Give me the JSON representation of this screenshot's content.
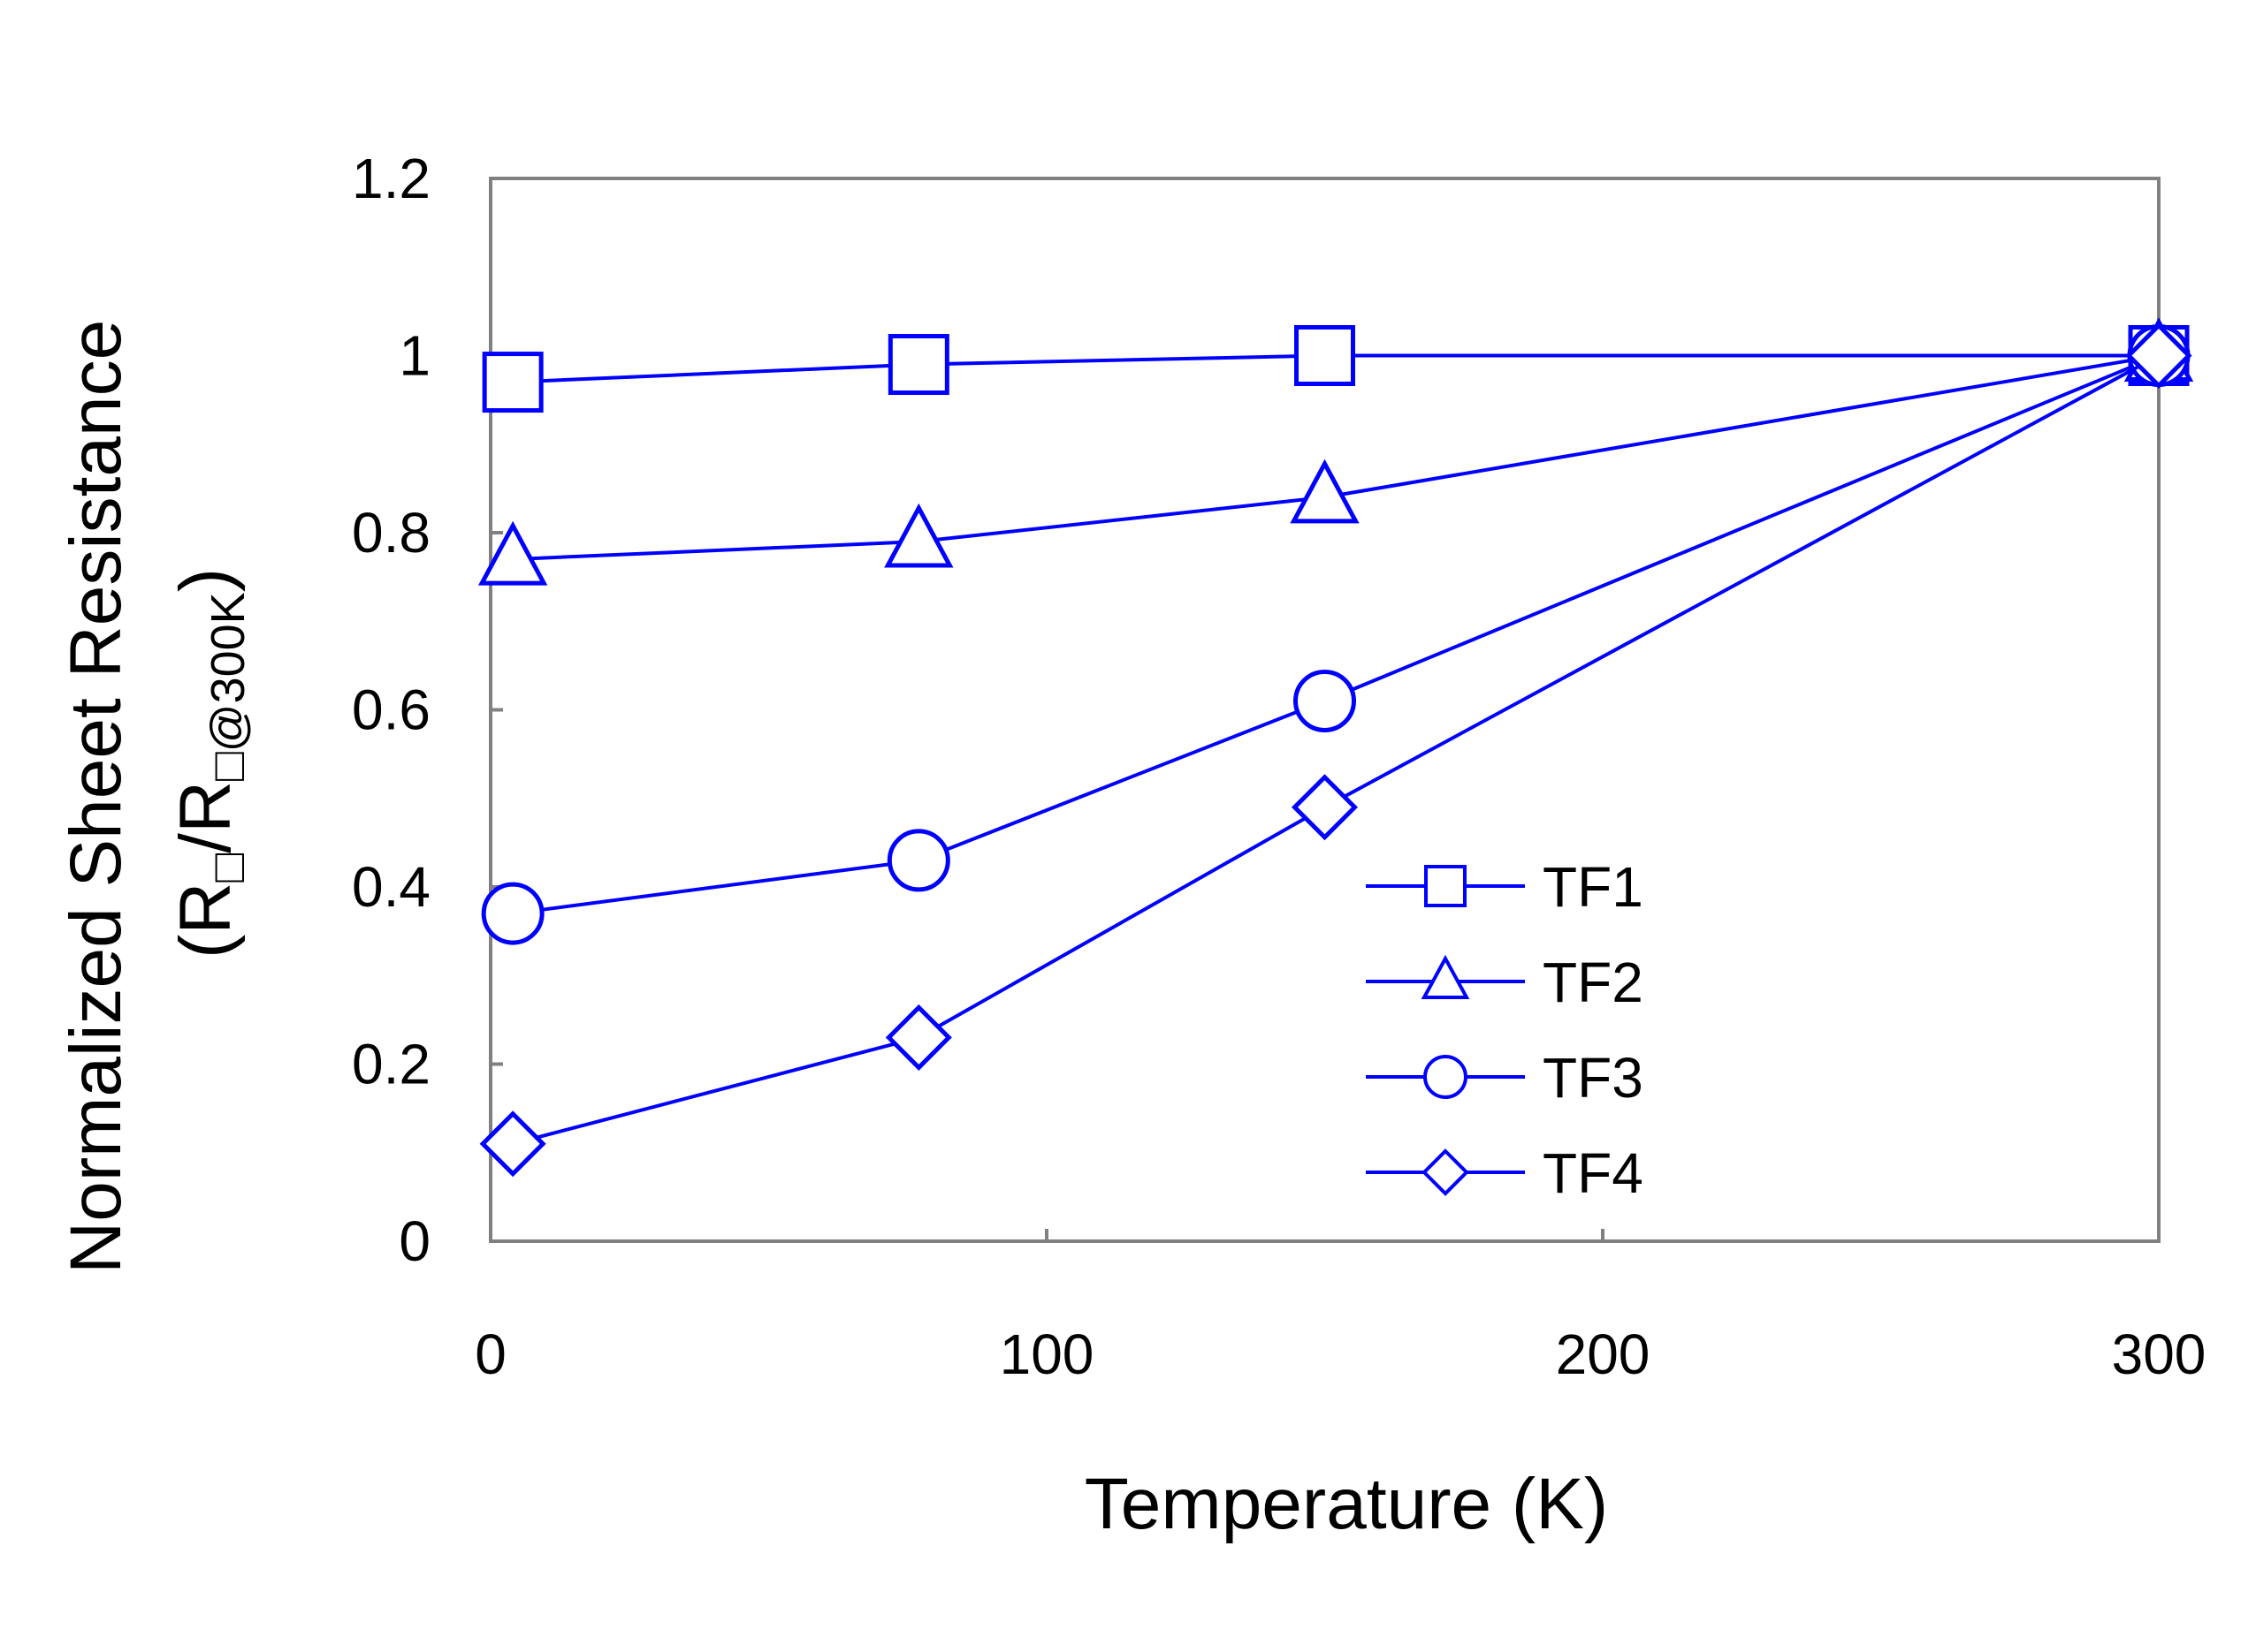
{
  "chart_data": {
    "type": "line",
    "title": "",
    "xlabel": "Temperature (K)",
    "ylabel": "Normalized Sheet Resistance",
    "ylabel_line2": {
      "open": "(R",
      "sub1": "□",
      "slash": "/R",
      "sub2": "□@300K",
      "close": ")"
    },
    "xlim": [
      0,
      300
    ],
    "ylim": [
      0,
      1.2
    ],
    "x_ticks": [
      {
        "value": 0,
        "label": "0"
      },
      {
        "value": 100,
        "label": "100"
      },
      {
        "value": 200,
        "label": "200"
      },
      {
        "value": 300,
        "label": "300"
      }
    ],
    "y_ticks": [
      {
        "value": 0,
        "label": "0"
      },
      {
        "value": 0.2,
        "label": "0.2"
      },
      {
        "value": 0.4,
        "label": "0.4"
      },
      {
        "value": 0.6,
        "label": "0.6"
      },
      {
        "value": 0.8,
        "label": "0.8"
      },
      {
        "value": 1.0,
        "label": "1"
      },
      {
        "value": 1.2,
        "label": "1.2"
      }
    ],
    "grid": false,
    "legend_position": "center-right",
    "line_color": "#0000ff",
    "series": [
      {
        "name": "TF1",
        "marker": "square",
        "x": [
          4,
          77,
          150,
          300
        ],
        "y": [
          0.97,
          0.99,
          1.0,
          1.0
        ]
      },
      {
        "name": "TF2",
        "marker": "triangle",
        "x": [
          4,
          77,
          150,
          300
        ],
        "y": [
          0.77,
          0.79,
          0.84,
          1.0
        ]
      },
      {
        "name": "TF3",
        "marker": "circle",
        "x": [
          4,
          77,
          150,
          300
        ],
        "y": [
          0.37,
          0.43,
          0.61,
          1.0
        ]
      },
      {
        "name": "TF4",
        "marker": "diamond",
        "x": [
          4,
          77,
          150,
          300
        ],
        "y": [
          0.11,
          0.23,
          0.49,
          1.0
        ]
      }
    ]
  }
}
